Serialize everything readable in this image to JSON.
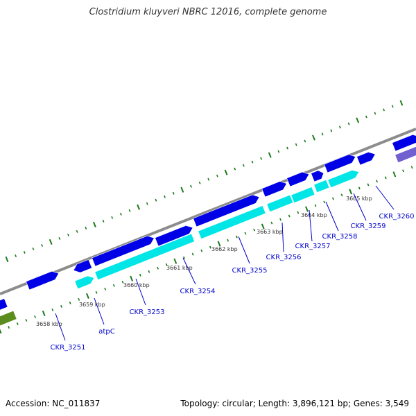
{
  "title": "Clostridium kluyveri NBRC 12016, complete genome",
  "footer": {
    "accession": "Accession: NC_011837",
    "topology": "Topology: circular; Length: 3,896,121 bp; Genes: 3,549"
  },
  "colors": {
    "backbone": "#8c8c8c",
    "forward_gene": "#0000e6",
    "cds": "#00e6e6",
    "tick": "#1a7a1a",
    "label": "#0000cc",
    "other_gene": "#5b8c1e",
    "purple_gene": "#7060d0"
  },
  "kbp_labels": [
    "3658 kbp",
    "3659 kbp",
    "3660 kbp",
    "3661 kbp",
    "3662 kbp",
    "3663 kbp",
    "3664 kbp",
    "3665 kbp"
  ],
  "gene_labels": [
    "CKR_3251",
    "atpC",
    "CKR_3253",
    "CKR_3254",
    "CKR_3255",
    "CKR_3256",
    "CKR_3257",
    "CKR_3258",
    "CKR_3259",
    "CKR_3260"
  ]
}
